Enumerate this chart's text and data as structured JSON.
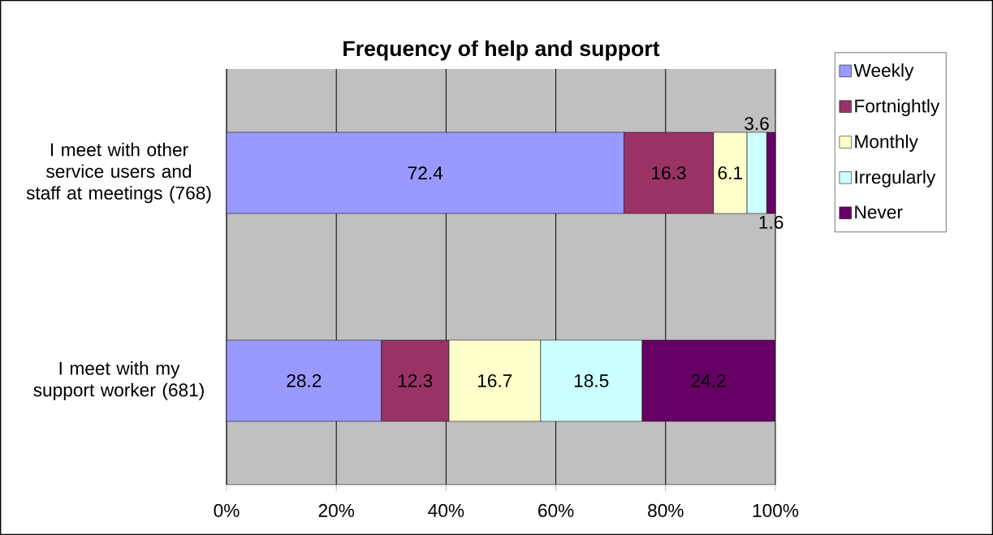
{
  "chart_data": {
    "type": "bar",
    "orientation": "horizontal",
    "stacked": true,
    "title": "Frequency of help and support",
    "categories": [
      "I meet with other service users and staff at meetings (768)",
      "I meet with my support worker (681)"
    ],
    "series": [
      {
        "name": "Weekly",
        "color": "#9999ff",
        "values": [
          72.4,
          28.2
        ]
      },
      {
        "name": "Fortnightly",
        "color": "#993366",
        "values": [
          16.3,
          12.3
        ]
      },
      {
        "name": "Monthly",
        "color": "#ffffcc",
        "values": [
          6.1,
          16.7
        ]
      },
      {
        "name": "Irregularly",
        "color": "#ccffff",
        "values": [
          3.6,
          18.5
        ]
      },
      {
        "name": "Never",
        "color": "#660066",
        "values": [
          1.6,
          24.2
        ]
      }
    ],
    "xlim": [
      0,
      100
    ],
    "xticks": [
      {
        "value": 0,
        "label": "0%"
      },
      {
        "value": 20,
        "label": "20%"
      },
      {
        "value": 40,
        "label": "40%"
      },
      {
        "value": 60,
        "label": "60%"
      },
      {
        "value": 80,
        "label": "80%"
      },
      {
        "value": 100,
        "label": "100%"
      }
    ],
    "grid": "x",
    "legend": "right",
    "data_labels": true
  }
}
